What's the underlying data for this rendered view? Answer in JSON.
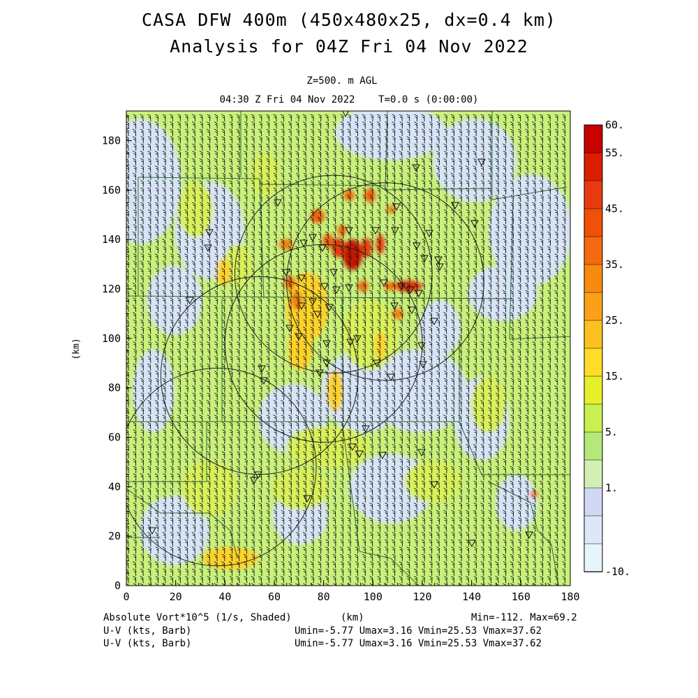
{
  "header": {
    "title_line1": "CASA DFW 400m (450x480x25, dx=0.4 km)",
    "title_line2": "Analysis for 04Z Fri 04 Nov 2022",
    "level": "Z=500. m AGL",
    "valid_time": "04:30 Z Fri 04 Nov 2022    T=0.0 s (0:00:00)"
  },
  "axes": {
    "x_label": "(km)",
    "y_label": "(km)",
    "x_ticks": [
      "0",
      "20",
      "40",
      "60",
      "80",
      "100",
      "120",
      "140",
      "160",
      "180"
    ],
    "y_ticks": [
      "0",
      "20",
      "40",
      "60",
      "80",
      "100",
      "120",
      "140",
      "160",
      "180"
    ],
    "x_range": [
      0,
      180
    ],
    "y_range": [
      0,
      192
    ]
  },
  "colorbar": {
    "labels": [
      "60.",
      "55.",
      "45.",
      "35.",
      "25.",
      "15.",
      "5.",
      "1.",
      "-10."
    ],
    "colors": [
      "#c80000",
      "#dc1e00",
      "#e83a10",
      "#f05008",
      "#f46a10",
      "#f88a10",
      "#fca018",
      "#fcc020",
      "#ffdc28",
      "#e6f028",
      "#c8f050",
      "#b4e87a",
      "#d2f0b4",
      "#d0d8f4",
      "#dce8f8",
      "#e6f4fc"
    ]
  },
  "footer": {
    "field_name": "Absolute Vort*10^5 (1/s, Shaded)",
    "x_unit": "(km)",
    "field_range": "Min=-112. Max=69.2",
    "barb_label_1": "U-V (kts, Barb)",
    "barb_stats_1": "Umin=-5.77 Umax=3.16 Vmin=25.53 Vmax=37.62",
    "barb_label_2": "U-V (kts, Barb)",
    "barb_stats_2": "Umin=-5.77 Umax=3.16 Vmin=25.53 Vmax=37.62"
  },
  "map": {
    "radar_circle_centers_km": [
      [
        105,
        123
      ],
      [
        84,
        126
      ],
      [
        80,
        98
      ],
      [
        54,
        85
      ],
      [
        37,
        48
      ]
    ],
    "radar_circle_radius_km": 40,
    "station_marker": "inverted-triangle",
    "icons": [
      "wind-barb-icon",
      "station-triangle-icon"
    ]
  }
}
